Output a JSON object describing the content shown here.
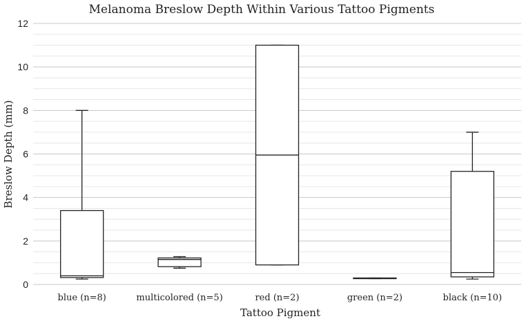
{
  "chart_data": {
    "type": "boxplot",
    "title": "Melanoma Breslow Depth Within Various Tattoo Pigments",
    "xlabel": "Tattoo Pigment",
    "ylabel": "Breslow Depth (mm)",
    "ylim": [
      0,
      12
    ],
    "yticks": [
      "0",
      "2",
      "4",
      "6",
      "8",
      "10",
      "12"
    ],
    "grid": true,
    "categories": [
      "blue (n=8)",
      "multicolored (n=5)",
      "red (n=2)",
      "green (n=2)",
      "black (n=10)"
    ],
    "boxes": [
      {
        "min": 0.25,
        "q1": 0.32,
        "median": 0.4,
        "q3": 3.4,
        "max": 8.0
      },
      {
        "min": 0.75,
        "q1": 0.82,
        "median": 1.15,
        "q3": 1.22,
        "max": 1.28
      },
      {
        "min": 0.9,
        "q1": 0.9,
        "median": 5.95,
        "q3": 11.0,
        "max": 11.0
      },
      {
        "min": 0.27,
        "q1": 0.27,
        "median": 0.28,
        "q3": 0.3,
        "max": 0.3
      },
      {
        "min": 0.25,
        "q1": 0.35,
        "median": 0.55,
        "q3": 5.2,
        "max": 7.0
      }
    ],
    "colors": {
      "box_stroke": "#222222",
      "box_fill": "#ffffff",
      "grid_major": "#c8c8c8",
      "grid_minor": "#e6e6e6"
    }
  }
}
